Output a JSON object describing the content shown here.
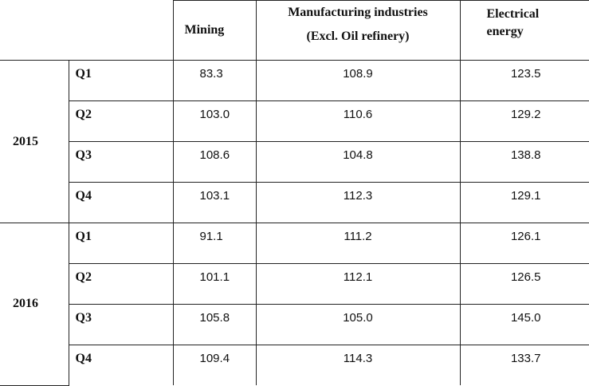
{
  "headers": {
    "mining": "Mining",
    "manufacturing_line1": "Manufacturing industries",
    "manufacturing_line2": "(Excl. Oil refinery)",
    "electrical_line1": "Electrical",
    "electrical_line2": "energy"
  },
  "years": [
    {
      "year": "2015",
      "rows": [
        {
          "quarter": "Q1",
          "mining": "83.3",
          "manufacturing": "108.9",
          "electrical": "123.5"
        },
        {
          "quarter": "Q2",
          "mining": "103.0",
          "manufacturing": "110.6",
          "electrical": "129.2"
        },
        {
          "quarter": "Q3",
          "mining": "108.6",
          "manufacturing": "104.8",
          "electrical": "138.8"
        },
        {
          "quarter": "Q4",
          "mining": "103.1",
          "manufacturing": "112.3",
          "electrical": "129.1"
        }
      ]
    },
    {
      "year": "2016",
      "rows": [
        {
          "quarter": "Q1",
          "mining": "91.1",
          "manufacturing": "111.2",
          "electrical": "126.1"
        },
        {
          "quarter": "Q2",
          "mining": "101.1",
          "manufacturing": "112.1",
          "electrical": "126.5"
        },
        {
          "quarter": "Q3",
          "mining": "105.8",
          "manufacturing": "105.0",
          "electrical": "145.0"
        },
        {
          "quarter": "Q4",
          "mining": "109.4",
          "manufacturing": "114.3",
          "electrical": "133.7"
        }
      ]
    }
  ]
}
